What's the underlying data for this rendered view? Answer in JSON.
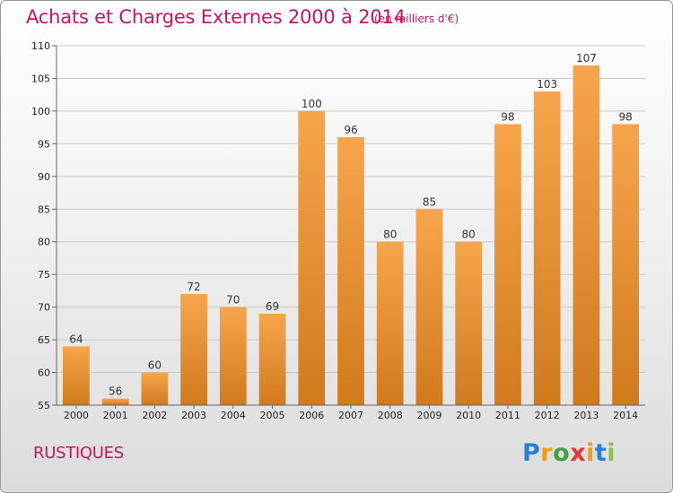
{
  "title": "Achats et Charges Externes 2000 à 2014",
  "unit_note": "(en milliers d'€)",
  "commune": "RUSTIQUES",
  "logo": {
    "text": "Proxiti",
    "letter_colors": [
      "#2a7fd4",
      "#f39c12",
      "#43a047",
      "#e53935",
      "#f39c12",
      "#2a7fd4",
      "#8bc34a"
    ]
  },
  "colors": {
    "title": "#c2185b",
    "bar_light": "#f7a54c",
    "bar_dark": "#d07a1c",
    "grid": "#c8c8c8"
  },
  "chart_data": {
    "type": "bar",
    "title": "Achats et Charges Externes 2000 à 2014",
    "categories": [
      "2000",
      "2001",
      "2002",
      "2003",
      "2004",
      "2005",
      "2006",
      "2007",
      "2008",
      "2009",
      "2010",
      "2011",
      "2012",
      "2013",
      "2014"
    ],
    "values": [
      64,
      56,
      60,
      72,
      70,
      69,
      100,
      96,
      80,
      85,
      80,
      98,
      103,
      107,
      98
    ],
    "ylim": [
      55,
      110
    ],
    "yticks": [
      55,
      60,
      65,
      70,
      75,
      80,
      85,
      90,
      95,
      100,
      105,
      110
    ],
    "grid": true,
    "xlabel": "",
    "ylabel": ""
  }
}
